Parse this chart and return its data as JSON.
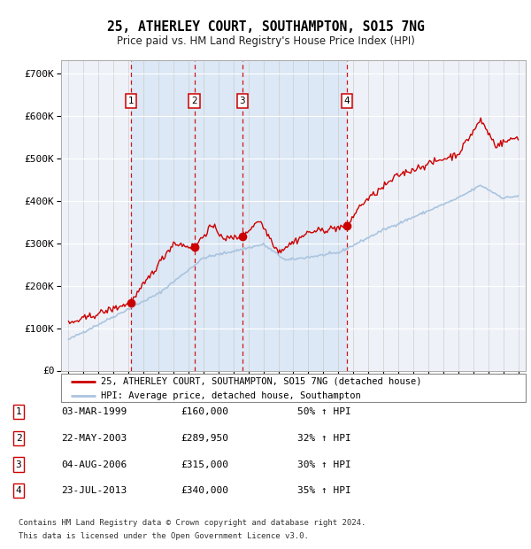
{
  "title": "25, ATHERLEY COURT, SOUTHAMPTON, SO15 7NG",
  "subtitle": "Price paid vs. HM Land Registry's House Price Index (HPI)",
  "legend_label_red": "25, ATHERLEY COURT, SOUTHAMPTON, SO15 7NG (detached house)",
  "legend_label_blue": "HPI: Average price, detached house, Southampton",
  "footer1": "Contains HM Land Registry data © Crown copyright and database right 2024.",
  "footer2": "This data is licensed under the Open Government Licence v3.0.",
  "transactions": [
    {
      "num": 1,
      "date": "03-MAR-1999",
      "price": "£160,000",
      "hpi": "50% ↑ HPI",
      "year": 1999.17,
      "value": 160000
    },
    {
      "num": 2,
      "date": "22-MAY-2003",
      "price": "£289,950",
      "hpi": "32% ↑ HPI",
      "year": 2003.39,
      "value": 289950
    },
    {
      "num": 3,
      "date": "04-AUG-2006",
      "price": "£315,000",
      "hpi": "30% ↑ HPI",
      "year": 2006.59,
      "value": 315000
    },
    {
      "num": 4,
      "date": "23-JUL-2013",
      "price": "£340,000",
      "hpi": "35% ↑ HPI",
      "year": 2013.56,
      "value": 340000
    }
  ],
  "xlim": [
    1994.5,
    2025.5
  ],
  "ylim": [
    0,
    730000
  ],
  "yticks": [
    0,
    100000,
    200000,
    300000,
    400000,
    500000,
    600000,
    700000
  ],
  "ytick_labels": [
    "£0",
    "£100K",
    "£200K",
    "£300K",
    "£400K",
    "£500K",
    "£600K",
    "£700K"
  ],
  "red_color": "#cc0000",
  "blue_color": "#aac4e0",
  "bg_shaded": "#dce8f5",
  "bg_unshaded": "#eef2f8"
}
